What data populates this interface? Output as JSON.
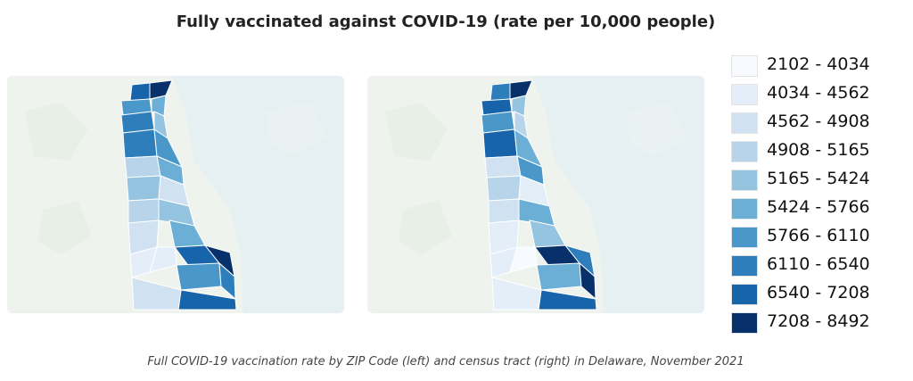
{
  "title": "Fully vaccinated against COVID-19 (rate per 10,000 people)",
  "caption": "Full COVID-19 vaccination rate by ZIP Code (left) and census tract (right) in Delaware, November 2021",
  "legend": {
    "items": [
      {
        "label": "2102 - 4034",
        "color": "#f7fbff"
      },
      {
        "label": "4034 - 4562",
        "color": "#e3eef9"
      },
      {
        "label": "4562 - 4908",
        "color": "#d0e1f2"
      },
      {
        "label": "4908 - 5165",
        "color": "#b7d4ea"
      },
      {
        "label": "5165 - 5424",
        "color": "#94c4df"
      },
      {
        "label": "5424 - 5766",
        "color": "#6baed6"
      },
      {
        "label": "5766 - 6110",
        "color": "#4a98c9"
      },
      {
        "label": "6110 - 6540",
        "color": "#2e7ebc"
      },
      {
        "label": "6540 - 7208",
        "color": "#1764ab"
      },
      {
        "label": "7208 - 8492",
        "color": "#08306b"
      }
    ]
  },
  "maps": [
    {
      "name": "zip-code-map",
      "regions": [
        {
          "name": "north-1",
          "class": 9
        },
        {
          "name": "north-2",
          "class": 8
        },
        {
          "name": "north-3",
          "class": 6
        },
        {
          "name": "north-4",
          "class": 5
        },
        {
          "name": "north-5",
          "class": 7
        },
        {
          "name": "north-6",
          "class": 4
        },
        {
          "name": "mid-1",
          "class": 7
        },
        {
          "name": "mid-2",
          "class": 6
        },
        {
          "name": "mid-3",
          "class": 3
        },
        {
          "name": "mid-4",
          "class": 5
        },
        {
          "name": "mid-5",
          "class": 4
        },
        {
          "name": "mid-6",
          "class": 2
        },
        {
          "name": "kent-1",
          "class": 3
        },
        {
          "name": "kent-2",
          "class": 4
        },
        {
          "name": "kent-3",
          "class": 5
        },
        {
          "name": "kent-4",
          "class": 2
        },
        {
          "name": "kent-5",
          "class": 1
        },
        {
          "name": "sussex-1",
          "class": 1
        },
        {
          "name": "sussex-2",
          "class": 8
        },
        {
          "name": "sussex-3",
          "class": 9
        },
        {
          "name": "sussex-4",
          "class": 6
        },
        {
          "name": "sussex-5",
          "class": 7
        },
        {
          "name": "sussex-6",
          "class": 8
        },
        {
          "name": "sussex-7",
          "class": 2
        }
      ]
    },
    {
      "name": "census-tract-map",
      "regions": [
        {
          "name": "north-1",
          "class": 9
        },
        {
          "name": "north-2",
          "class": 7
        },
        {
          "name": "north-3",
          "class": 8
        },
        {
          "name": "north-4",
          "class": 4
        },
        {
          "name": "north-5",
          "class": 6
        },
        {
          "name": "north-6",
          "class": 3
        },
        {
          "name": "mid-1",
          "class": 8
        },
        {
          "name": "mid-2",
          "class": 5
        },
        {
          "name": "mid-3",
          "class": 2
        },
        {
          "name": "mid-4",
          "class": 6
        },
        {
          "name": "mid-5",
          "class": 3
        },
        {
          "name": "mid-6",
          "class": 1
        },
        {
          "name": "kent-1",
          "class": 2
        },
        {
          "name": "kent-2",
          "class": 5
        },
        {
          "name": "kent-3",
          "class": 4
        },
        {
          "name": "kent-4",
          "class": 1
        },
        {
          "name": "kent-5",
          "class": 0
        },
        {
          "name": "sussex-1",
          "class": 1
        },
        {
          "name": "sussex-2",
          "class": 9
        },
        {
          "name": "sussex-3",
          "class": 7
        },
        {
          "name": "sussex-4",
          "class": 5
        },
        {
          "name": "sussex-5",
          "class": 9
        },
        {
          "name": "sussex-6",
          "class": 8
        },
        {
          "name": "sussex-7",
          "class": 1
        }
      ]
    }
  ]
}
